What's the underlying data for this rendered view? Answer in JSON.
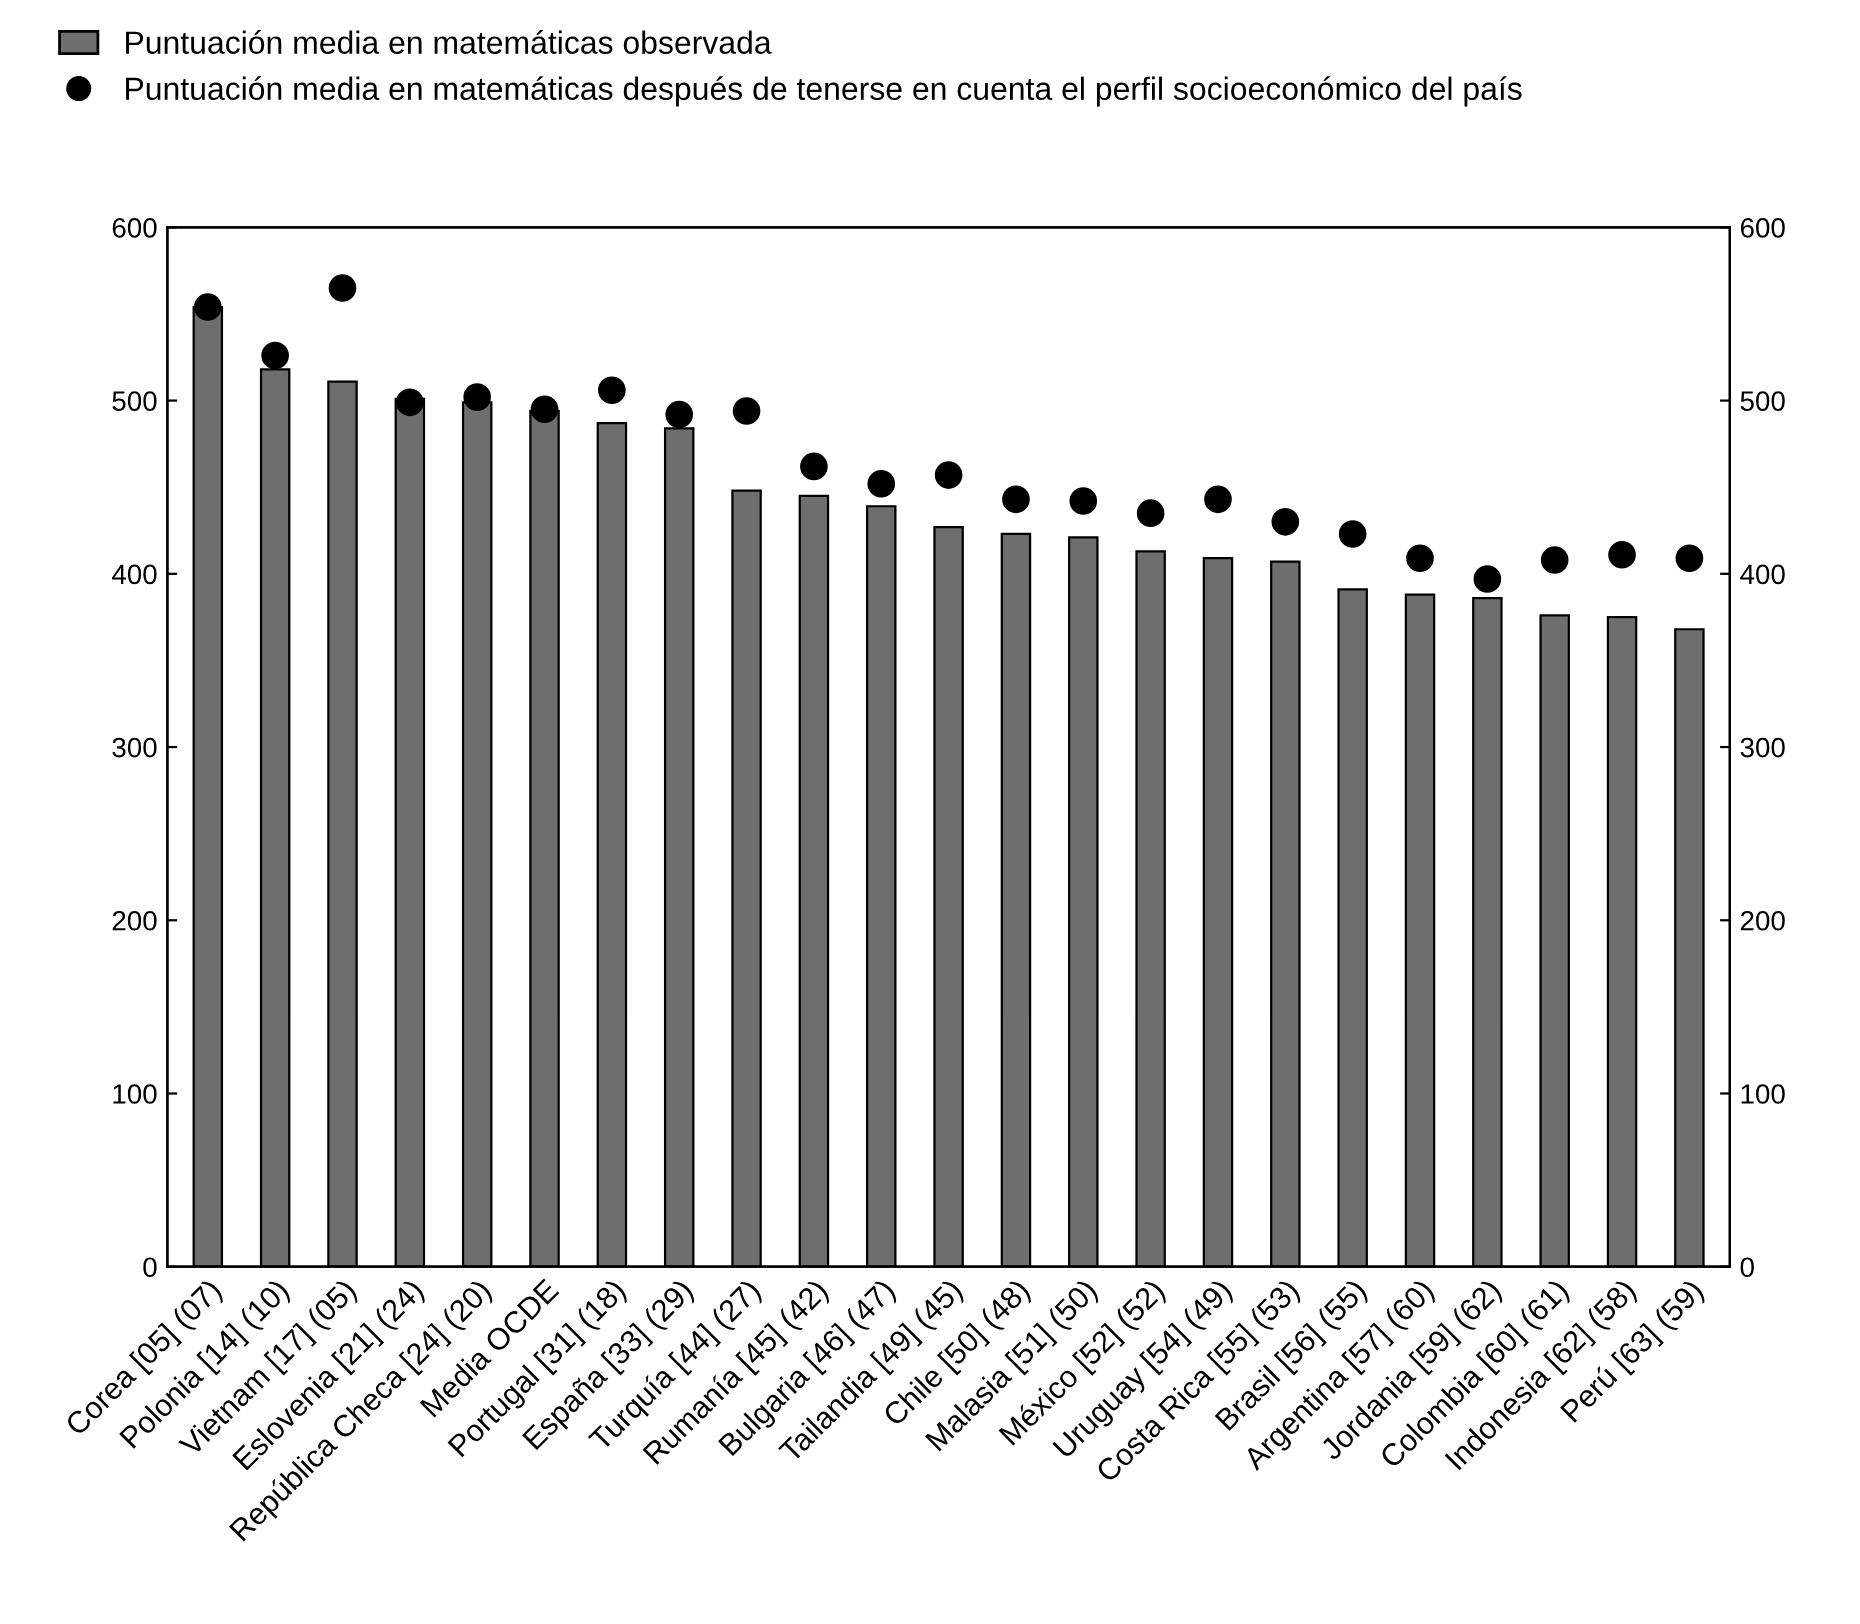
{
  "chart_data": {
    "type": "bar",
    "categories": [
      "Corea [05] (07)",
      "Polonia [14] (10)",
      "Vietnam [17] (05)",
      "Eslovenia [21] (24)",
      "República Checa [24] (20)",
      "Media OCDE",
      "Portugal [31] (18)",
      "España [33] (29)",
      "Turquía [44] (27)",
      "Rumanía [45] (42)",
      "Bulgaria [46] (47)",
      "Tailandia [49] (45)",
      "Chile [50] (48)",
      "Malasia [51] (50)",
      "México [52] (52)",
      "Uruguay [54] (49)",
      "Costa Rica [55] (53)",
      "Brasil [56] (55)",
      "Argentina [57] (60)",
      "Jordania [59] (62)",
      "Colombia [60] (61)",
      "Indonesia [62] (58)",
      "Perú [63] (59)"
    ],
    "series": [
      {
        "name": "Puntuación media en matemáticas observada",
        "color": "#6e6e6e",
        "values": [
          554,
          518,
          511,
          501,
          499,
          494,
          487,
          484,
          448,
          445,
          439,
          427,
          423,
          421,
          413,
          409,
          407,
          391,
          388,
          386,
          376,
          375,
          368
        ]
      },
      {
        "name": "Puntuación media en matemáticas después de tenerse en cuenta el perfil socioeconómico del país",
        "type": "scatter",
        "color": "#000000",
        "marker": "circle",
        "values": [
          554,
          526,
          565,
          499,
          502,
          495,
          506,
          492,
          494,
          462,
          452,
          457,
          443,
          442,
          435,
          443,
          430,
          423,
          409,
          397,
          408,
          411,
          409
        ]
      }
    ],
    "ylim": [
      0,
      600
    ],
    "yticks": [
      0,
      100,
      200,
      300,
      400,
      500,
      600
    ],
    "y2lim": [
      0,
      600
    ],
    "y2ticks": [
      0,
      100,
      200,
      300,
      400,
      500,
      600
    ],
    "grid": false,
    "legend": "top left"
  }
}
